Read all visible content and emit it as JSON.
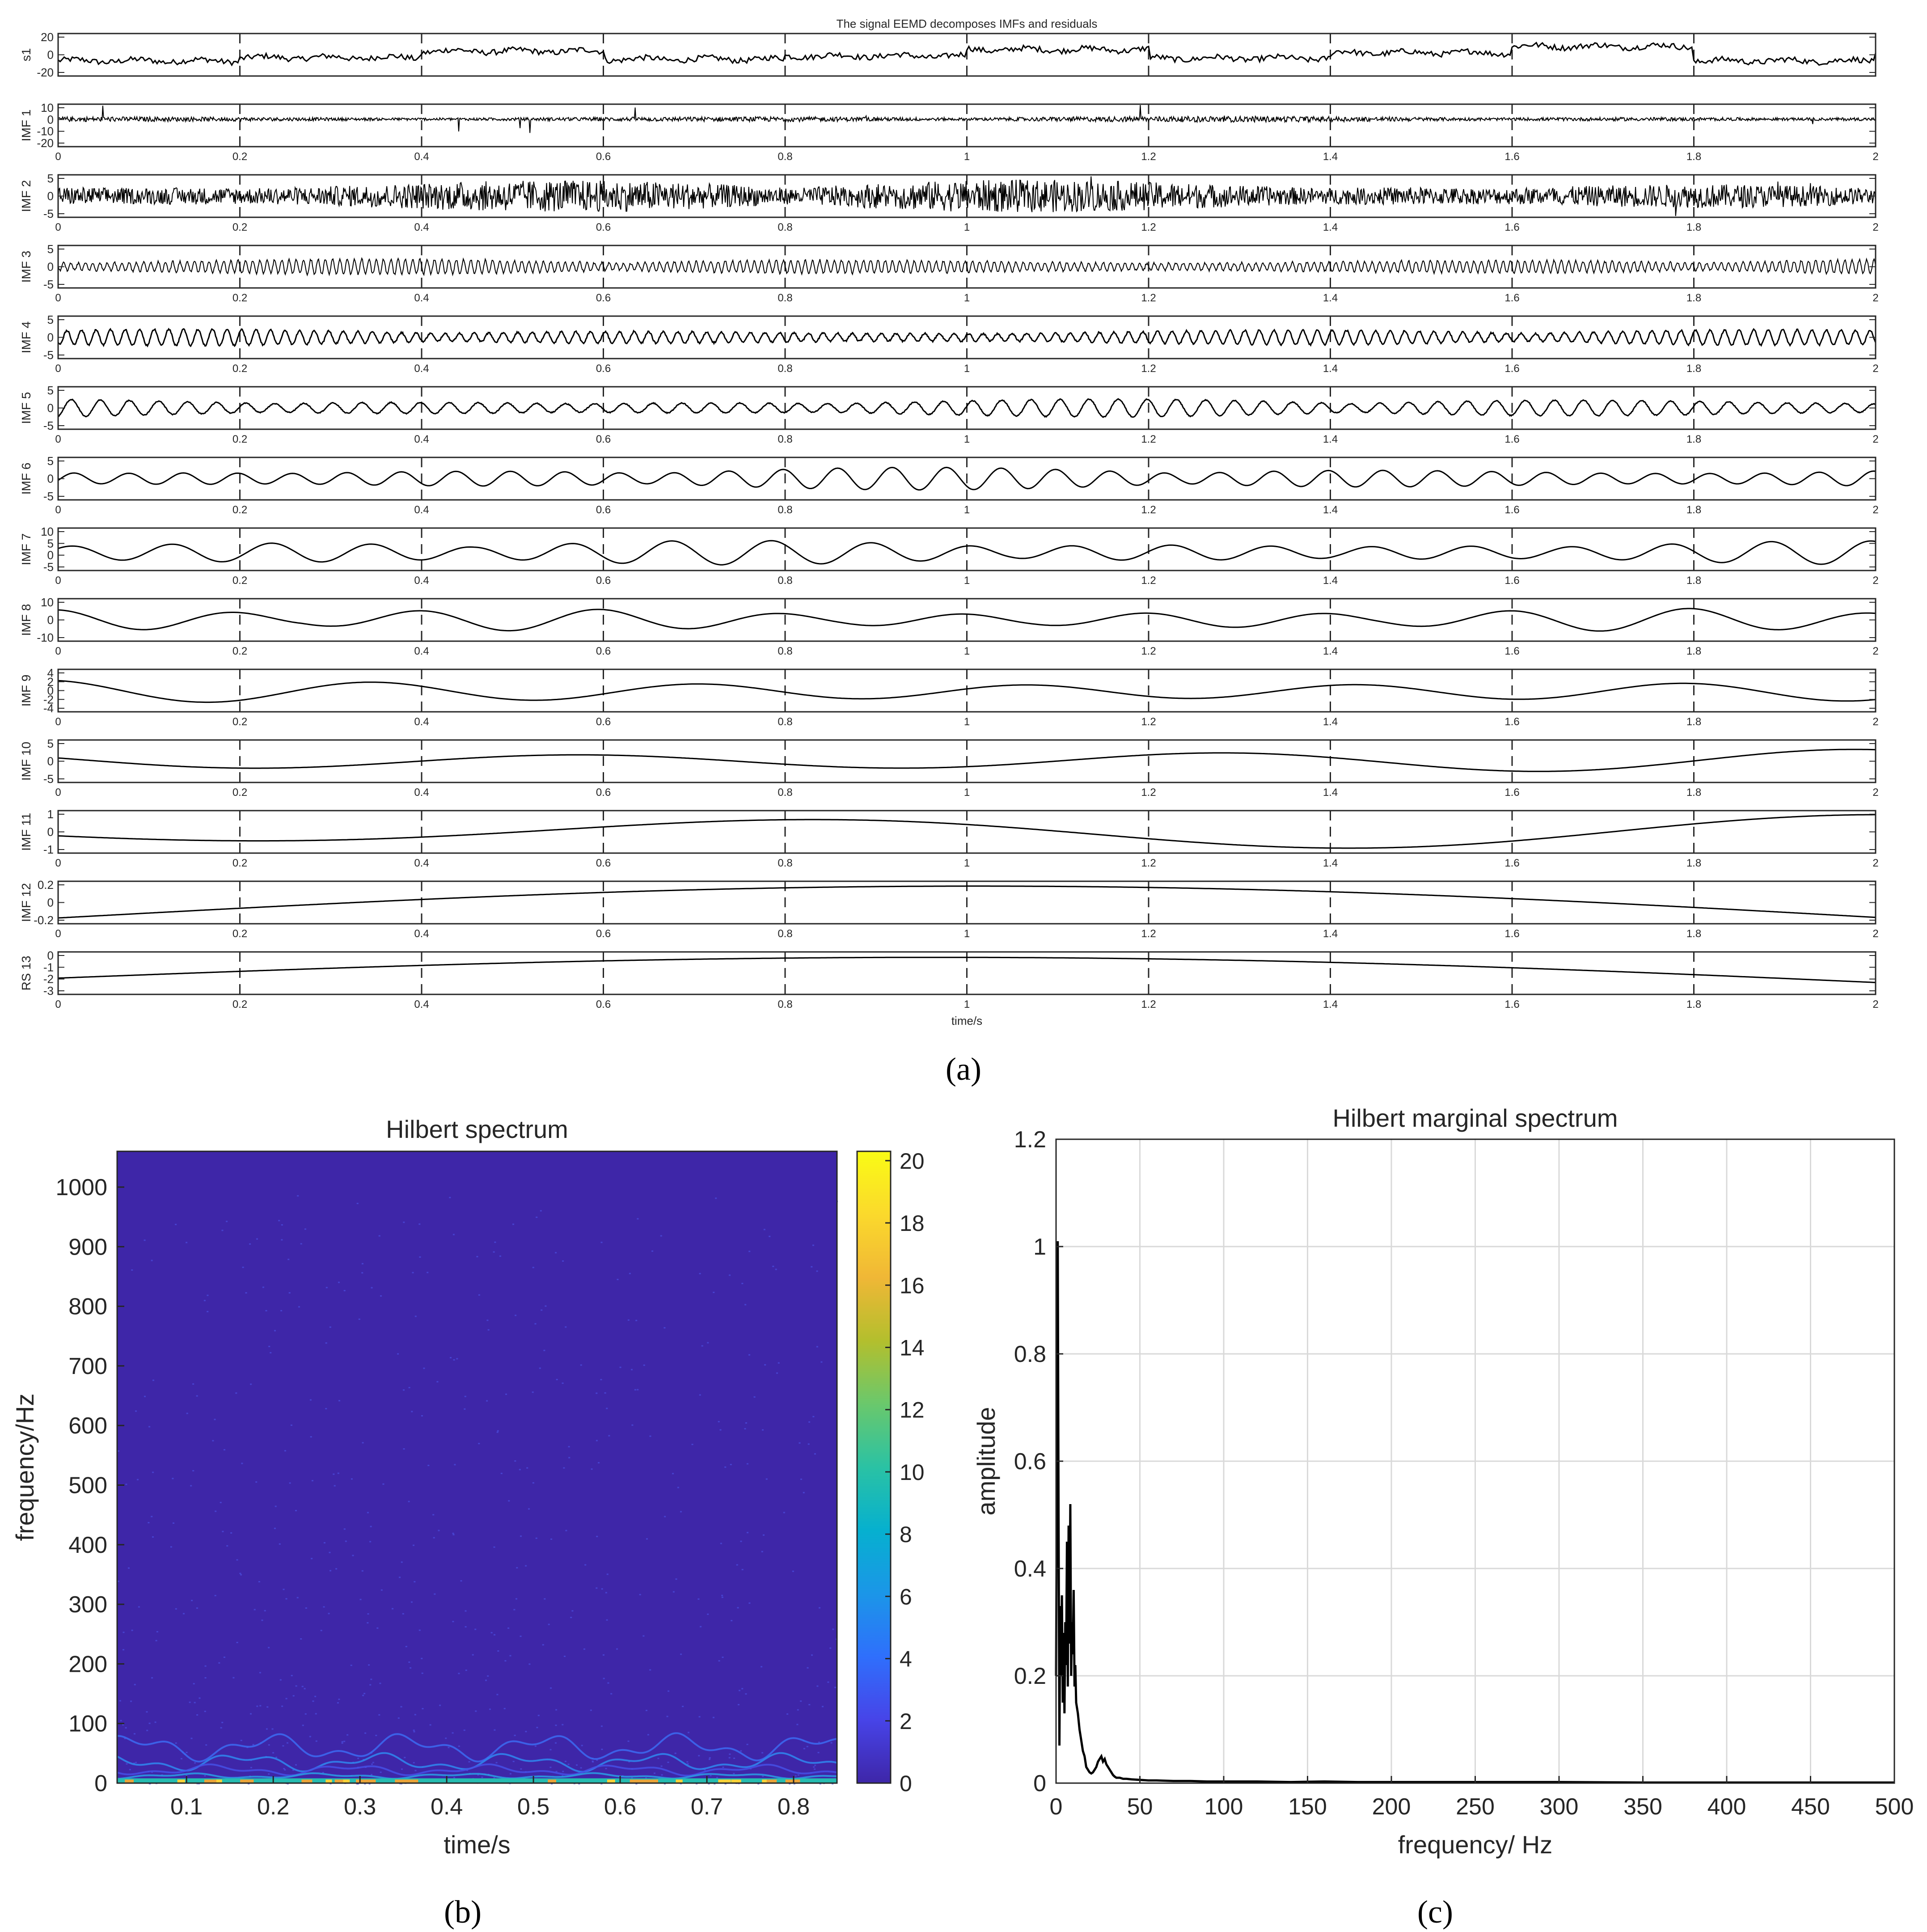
{
  "figure": {
    "panel_labels": [
      "(a)",
      "(b)",
      "(c)"
    ],
    "colors": {
      "line": "#000000",
      "grid": "#d9d9d9",
      "dash": "#262626",
      "heat_bg": "#3e26a8",
      "heat_bottom": "#26bcb0"
    }
  },
  "chart_data": [
    {
      "type": "line",
      "title": "The signal EEMD decomposes IMFs and residuals",
      "xlabel": "time/s",
      "xlim": [
        0,
        2
      ],
      "xticks": [
        0,
        0.2,
        0.4,
        0.6,
        0.8,
        1,
        1.2,
        1.4,
        1.6,
        1.8,
        2
      ],
      "xtick_labels": [
        "0",
        "0.2",
        "0.4",
        "0.6",
        "0.8",
        "1",
        "1.2",
        "1.4",
        "1.6",
        "1.8",
        "2"
      ],
      "vertical_dashed_gridlines": true,
      "subplots": [
        {
          "name": "s1",
          "yticks": [
            "20",
            "0",
            "-20"
          ],
          "ylim": [
            -25,
            28
          ],
          "period": 0.11,
          "noise": 0.35,
          "amp": 6,
          "kind": "steps"
        },
        {
          "name": "IMF 1",
          "yticks": [
            "10",
            "0",
            "-10",
            "-20"
          ],
          "ylim": [
            -22,
            12
          ],
          "period": 0.002,
          "noise": 1,
          "amp": 1.2,
          "kind": "noise"
        },
        {
          "name": "IMF 2",
          "yticks": [
            "5",
            "0",
            "-5"
          ],
          "ylim": [
            -6,
            6
          ],
          "period": 0.003,
          "noise": 1,
          "amp": 2.5,
          "kind": "noise"
        },
        {
          "name": "IMF 3",
          "yticks": [
            "5",
            "0",
            "-5"
          ],
          "ylim": [
            -6,
            6
          ],
          "period": 0.008,
          "noise": 0.3,
          "amp": 2.2,
          "kind": "burst"
        },
        {
          "name": "IMF 4",
          "yticks": [
            "5",
            "0",
            "-5"
          ],
          "ylim": [
            -6,
            6
          ],
          "period": 0.016,
          "noise": 0.2,
          "amp": 2.3,
          "kind": "burst"
        },
        {
          "name": "IMF 5",
          "yticks": [
            "5",
            "0",
            "-5"
          ],
          "ylim": [
            -6,
            6
          ],
          "period": 0.032,
          "noise": 0.1,
          "amp": 2.6,
          "kind": "burst"
        },
        {
          "name": "IMF 6",
          "yticks": [
            "5",
            "0",
            "-5"
          ],
          "ylim": [
            -6,
            6
          ],
          "period": 0.06,
          "noise": 0,
          "amp": 3.2,
          "kind": "burst"
        },
        {
          "name": "IMF 7",
          "yticks": [
            "10",
            "5",
            "0",
            "-5"
          ],
          "ylim": [
            -8,
            11
          ],
          "period": 0.11,
          "noise": 0,
          "amp": 5.5,
          "kind": "burst"
        },
        {
          "name": "IMF 8",
          "yticks": [
            "10",
            "0",
            "-10"
          ],
          "ylim": [
            -11,
            11
          ],
          "period": 0.2,
          "noise": 0,
          "amp": 6,
          "kind": "burst"
        },
        {
          "name": "IMF 9",
          "yticks": [
            "4",
            "2",
            "0",
            "-2",
            "-4"
          ],
          "ylim": [
            -4.5,
            5
          ],
          "period": 0.36,
          "noise": 0,
          "amp": 3,
          "kind": "wave"
        },
        {
          "name": "IMF 10",
          "yticks": [
            "5",
            "0",
            "-5"
          ],
          "ylim": [
            -5,
            5
          ],
          "period": 0.7,
          "noise": 0,
          "amp": 3,
          "kind": "wave"
        },
        {
          "name": "IMF 11",
          "yticks": [
            "1",
            "0",
            "-1"
          ],
          "ylim": [
            -1.1,
            1.1
          ],
          "period": 1.2,
          "noise": 0,
          "amp": 0.9,
          "kind": "wave"
        },
        {
          "name": "IMF 12",
          "yticks": [
            "0.2",
            "0",
            "-0.2"
          ],
          "ylim": [
            -0.22,
            0.22
          ],
          "period": 4,
          "noise": 0,
          "amp": 0.2,
          "kind": "arch"
        },
        {
          "name": "RS 13",
          "yticks": [
            "0",
            "-1",
            "-2",
            "-3"
          ],
          "ylim": [
            -3.2,
            0.6
          ],
          "period": 4,
          "noise": 0,
          "amp": 3,
          "kind": "rs"
        }
      ]
    },
    {
      "type": "heatmap",
      "title": "Hilbert spectrum",
      "xlabel": "time/s",
      "ylabel": "frequency/Hz",
      "xlim": [
        0.02,
        0.85
      ],
      "ylim": [
        0,
        1060
      ],
      "xticks": [
        0.1,
        0.2,
        0.3,
        0.4,
        0.5,
        0.6,
        0.7,
        0.8
      ],
      "xtick_labels": [
        "0.1",
        "0.2",
        "0.3",
        "0.4",
        "0.5",
        "0.6",
        "0.7",
        "0.8"
      ],
      "yticks": [
        0,
        100,
        200,
        300,
        400,
        500,
        600,
        700,
        800,
        900,
        1000
      ],
      "ytick_labels": [
        "0",
        "100",
        "200",
        "300",
        "400",
        "500",
        "600",
        "700",
        "800",
        "900",
        "1000"
      ],
      "colorbar": {
        "range": [
          0,
          20.3
        ],
        "ticks": [
          0,
          2,
          4,
          6,
          8,
          10,
          12,
          14,
          16,
          18,
          20
        ],
        "tick_labels": [
          "0",
          "2",
          "4",
          "6",
          "8",
          "10",
          "12",
          "14",
          "16",
          "18",
          "20"
        ],
        "colormap": [
          "#3e26a8",
          "#4744e8",
          "#2f6ffc",
          "#1b96e8",
          "#06b0cf",
          "#2ac2a4",
          "#6ac86c",
          "#b3bf2d",
          "#f0b736",
          "#fbd92c",
          "#f9fb15"
        ]
      },
      "colormap_name": "parula"
    },
    {
      "type": "line",
      "title": "Hilbert marginal spectrum",
      "xlabel": "frequency/ Hz",
      "ylabel": "amplitude",
      "xlim": [
        0,
        500
      ],
      "ylim": [
        0,
        1.2
      ],
      "grid": true,
      "xticks": [
        0,
        50,
        100,
        150,
        200,
        250,
        300,
        350,
        400,
        450,
        500
      ],
      "xtick_labels": [
        "0",
        "50",
        "100",
        "150",
        "200",
        "250",
        "300",
        "350",
        "400",
        "450",
        "500"
      ],
      "yticks": [
        0,
        0.2,
        0.4,
        0.6,
        0.8,
        1,
        1.2
      ],
      "ytick_labels": [
        "0",
        "0.2",
        "0.4",
        "0.6",
        "0.8",
        "1",
        "1.2"
      ],
      "series": [
        {
          "x": [
            0,
            0.5,
            1,
            1.5,
            2,
            2.5,
            3,
            3.5,
            4,
            4.5,
            5,
            5.5,
            6,
            6.5,
            7,
            7.5,
            8,
            8.5,
            9,
            9.5,
            10,
            10.5,
            11,
            11.5,
            12,
            13,
            14,
            15,
            16,
            17,
            18,
            19,
            20,
            21,
            22,
            23,
            24,
            25,
            26,
            27,
            28,
            29,
            30,
            31,
            32,
            33,
            34,
            35,
            36,
            37,
            38,
            40,
            42,
            45,
            50,
            55,
            60,
            70,
            80,
            90,
            100,
            120,
            140,
            160,
            180,
            200,
            250,
            300,
            350,
            400,
            450,
            500
          ],
          "y": [
            0.2,
            0.6,
            1.01,
            0.5,
            0.07,
            0.33,
            0.2,
            0.35,
            0.15,
            0.28,
            0.13,
            0.3,
            0.22,
            0.45,
            0.18,
            0.48,
            0.26,
            0.52,
            0.2,
            0.3,
            0.24,
            0.36,
            0.18,
            0.22,
            0.15,
            0.13,
            0.1,
            0.08,
            0.06,
            0.05,
            0.03,
            0.025,
            0.02,
            0.018,
            0.02,
            0.025,
            0.03,
            0.04,
            0.045,
            0.05,
            0.04,
            0.045,
            0.035,
            0.03,
            0.025,
            0.02,
            0.015,
            0.012,
            0.01,
            0.01,
            0.01,
            0.008,
            0.008,
            0.007,
            0.006,
            0.005,
            0.005,
            0.004,
            0.004,
            0.003,
            0.003,
            0.003,
            0.002,
            0.003,
            0.002,
            0.002,
            0.002,
            0.002,
            0.001,
            0.001,
            0.001,
            0.001
          ]
        }
      ]
    }
  ]
}
